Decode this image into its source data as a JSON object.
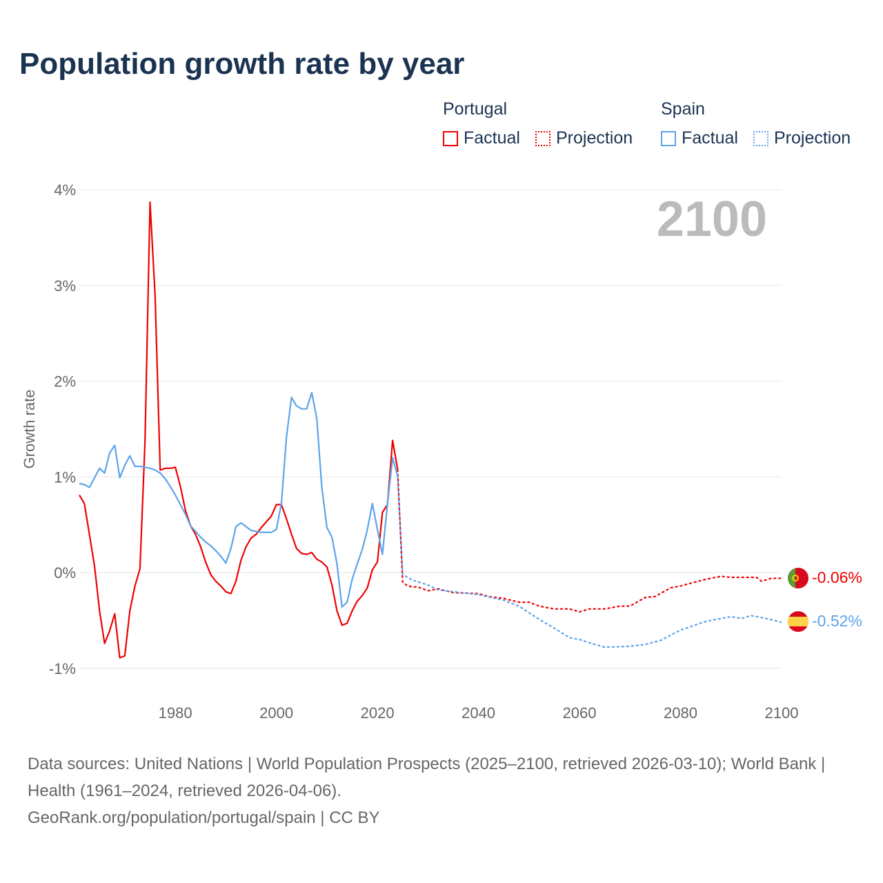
{
  "title": "Population growth rate by year",
  "legend": {
    "groups": [
      {
        "name": "Portugal",
        "factual": "Factual",
        "projection": "Projection",
        "color": "#ee0000"
      },
      {
        "name": "Spain",
        "factual": "Factual",
        "projection": "Projection",
        "color": "#5ba3ea"
      }
    ]
  },
  "year_overlay": "2100",
  "footer": {
    "sources": "Data sources: United Nations | World Population Prospects (2025–2100, retrieved 2026-03-10); World Bank | Health (1961–2024, retrieved 2026-04-06).",
    "credit": "GeoRank.org/population/portugal/spain | CC BY"
  },
  "chart_data": {
    "type": "line",
    "title": "Population growth rate by year",
    "xlabel": "",
    "ylabel": "Growth rate",
    "xlim": [
      1961,
      2100
    ],
    "ylim": [
      -1,
      4
    ],
    "x_ticks": [
      "1980",
      "2000",
      "2020",
      "2040",
      "2060",
      "2080",
      "2100"
    ],
    "y_ticks": [
      "4%",
      "3%",
      "2%",
      "1%",
      "0%",
      "-1%"
    ],
    "grid": true,
    "end_labels": {
      "Portugal": "-0.06%",
      "Spain": "-0.52%"
    },
    "series": [
      {
        "name": "Portugal Factual",
        "color": "#ee0000",
        "style": "solid",
        "x": [
          1961,
          1962,
          1963,
          1964,
          1965,
          1966,
          1967,
          1968,
          1969,
          1970,
          1971,
          1972,
          1973,
          1974,
          1975,
          1976,
          1977,
          1978,
          1979,
          1980,
          1981,
          1982,
          1983,
          1984,
          1985,
          1986,
          1987,
          1988,
          1989,
          1990,
          1991,
          1992,
          1993,
          1994,
          1995,
          1996,
          1997,
          1998,
          1999,
          2000,
          2001,
          2002,
          2003,
          2004,
          2005,
          2006,
          2007,
          2008,
          2009,
          2010,
          2011,
          2012,
          2013,
          2014,
          2015,
          2016,
          2017,
          2018,
          2019,
          2020,
          2021,
          2022,
          2023,
          2024
        ],
        "y": [
          0.81,
          0.72,
          0.4,
          0.07,
          -0.4,
          -0.74,
          -0.61,
          -0.43,
          -0.89,
          -0.87,
          -0.4,
          -0.14,
          0.04,
          1.37,
          3.87,
          2.88,
          1.07,
          1.09,
          1.09,
          1.1,
          0.9,
          0.65,
          0.49,
          0.4,
          0.27,
          0.11,
          -0.02,
          -0.09,
          -0.14,
          -0.2,
          -0.22,
          -0.09,
          0.13,
          0.27,
          0.36,
          0.4,
          0.47,
          0.53,
          0.59,
          0.71,
          0.71,
          0.56,
          0.4,
          0.25,
          0.2,
          0.19,
          0.21,
          0.14,
          0.11,
          0.06,
          -0.13,
          -0.4,
          -0.55,
          -0.53,
          -0.4,
          -0.3,
          -0.24,
          -0.16,
          0.03,
          0.11,
          0.63,
          0.71,
          1.38,
          1.08
        ]
      },
      {
        "name": "Portugal Projection",
        "color": "#ee0000",
        "style": "dotted",
        "x": [
          2024,
          2025,
          2026,
          2027,
          2028,
          2030,
          2032,
          2035,
          2040,
          2042,
          2045,
          2048,
          2050,
          2052,
          2055,
          2058,
          2060,
          2062,
          2065,
          2068,
          2070,
          2073,
          2075,
          2078,
          2080,
          2085,
          2088,
          2090,
          2095,
          2096,
          2098,
          2100
        ],
        "y": [
          1.08,
          -0.1,
          -0.14,
          -0.15,
          -0.15,
          -0.19,
          -0.17,
          -0.21,
          -0.22,
          -0.25,
          -0.27,
          -0.31,
          -0.31,
          -0.35,
          -0.38,
          -0.38,
          -0.41,
          -0.38,
          -0.38,
          -0.35,
          -0.35,
          -0.26,
          -0.25,
          -0.16,
          -0.14,
          -0.07,
          -0.04,
          -0.05,
          -0.05,
          -0.09,
          -0.06,
          -0.06
        ]
      },
      {
        "name": "Spain Factual",
        "color": "#5ba3ea",
        "style": "solid",
        "x": [
          1961,
          1962,
          1963,
          1964,
          1965,
          1966,
          1967,
          1968,
          1969,
          1970,
          1971,
          1972,
          1973,
          1974,
          1975,
          1976,
          1977,
          1978,
          1979,
          1980,
          1981,
          1982,
          1983,
          1984,
          1985,
          1986,
          1987,
          1988,
          1989,
          1990,
          1991,
          1992,
          1993,
          1994,
          1995,
          1996,
          1997,
          1998,
          1999,
          2000,
          2001,
          2002,
          2003,
          2004,
          2005,
          2006,
          2007,
          2008,
          2009,
          2010,
          2011,
          2012,
          2013,
          2014,
          2015,
          2016,
          2017,
          2018,
          2019,
          2020,
          2021,
          2022,
          2023,
          2024
        ],
        "y": [
          0.93,
          0.92,
          0.89,
          0.99,
          1.09,
          1.04,
          1.25,
          1.33,
          0.99,
          1.12,
          1.22,
          1.11,
          1.11,
          1.1,
          1.09,
          1.07,
          1.04,
          0.98,
          0.9,
          0.81,
          0.71,
          0.61,
          0.49,
          0.43,
          0.37,
          0.32,
          0.28,
          0.23,
          0.17,
          0.1,
          0.25,
          0.48,
          0.52,
          0.48,
          0.44,
          0.43,
          0.42,
          0.42,
          0.42,
          0.45,
          0.72,
          1.42,
          1.83,
          1.74,
          1.71,
          1.71,
          1.88,
          1.61,
          0.89,
          0.47,
          0.37,
          0.09,
          -0.36,
          -0.31,
          -0.07,
          0.09,
          0.24,
          0.45,
          0.72,
          0.45,
          0.19,
          0.72,
          1.2,
          1.01
        ]
      },
      {
        "name": "Spain Projection",
        "color": "#5ba3ea",
        "style": "dotted",
        "x": [
          2024,
          2025,
          2027,
          2030,
          2032,
          2035,
          2040,
          2045,
          2048,
          2050,
          2053,
          2055,
          2058,
          2060,
          2063,
          2065,
          2070,
          2073,
          2076,
          2080,
          2085,
          2090,
          2092,
          2094,
          2097,
          2100
        ],
        "y": [
          1.01,
          -0.02,
          -0.08,
          -0.13,
          -0.18,
          -0.2,
          -0.23,
          -0.29,
          -0.35,
          -0.42,
          -0.52,
          -0.58,
          -0.68,
          -0.7,
          -0.75,
          -0.78,
          -0.77,
          -0.75,
          -0.71,
          -0.6,
          -0.51,
          -0.46,
          -0.48,
          -0.45,
          -0.48,
          -0.52
        ]
      }
    ]
  }
}
